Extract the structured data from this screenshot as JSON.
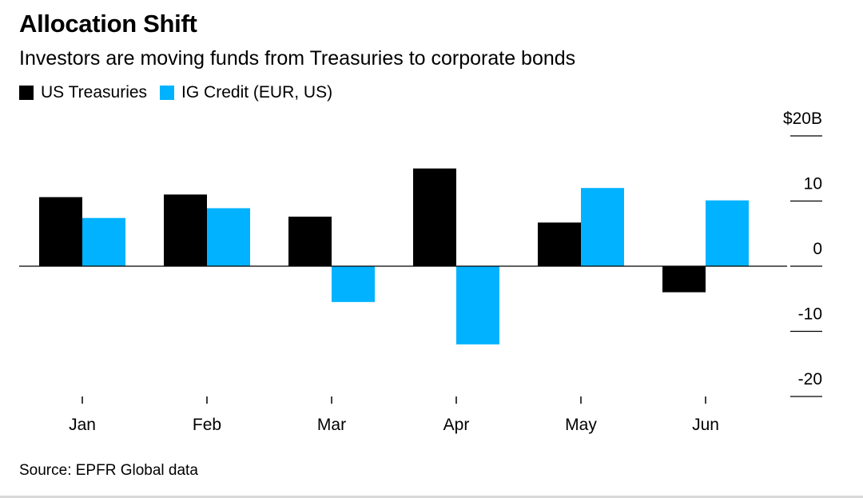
{
  "header": {
    "title": "Allocation Shift",
    "subtitle": "Investors are moving funds from Treasuries to corporate bonds"
  },
  "legend": {
    "items": [
      {
        "label": "US Treasuries",
        "color": "#000000"
      },
      {
        "label": "IG Credit (EUR, US)",
        "color": "#00b2ff"
      }
    ]
  },
  "source": "Source: EPFR Global data",
  "chart_data": {
    "type": "bar",
    "categories": [
      "Jan",
      "Feb",
      "Mar",
      "Apr",
      "May",
      "Jun"
    ],
    "series": [
      {
        "name": "US Treasuries",
        "color": "#000000",
        "values": [
          10.6,
          11.0,
          7.6,
          15.0,
          6.7,
          -4.0
        ]
      },
      {
        "name": "IG Credit (EUR, US)",
        "color": "#00b2ff",
        "values": [
          7.4,
          8.9,
          -5.5,
          -12.0,
          12.0,
          10.1
        ]
      }
    ],
    "yticks": [
      20,
      10,
      0,
      -10,
      -20
    ],
    "ytick_labels": [
      "$20B",
      "10",
      "0",
      "-10",
      "-20"
    ],
    "ylim": [
      -20,
      20
    ],
    "title": "Allocation Shift",
    "xlabel": "",
    "ylabel": "",
    "legend_position": "top-left",
    "grid": false
  }
}
